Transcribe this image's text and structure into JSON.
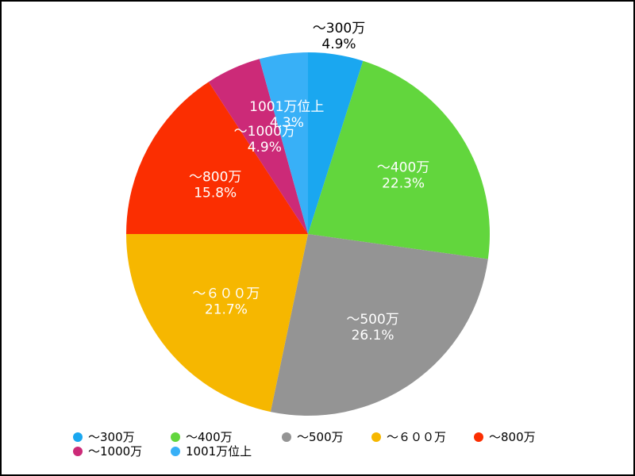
{
  "chart_data": {
    "type": "pie",
    "legend_position": "bottom",
    "slices": [
      {
        "label": "～300万",
        "value": 4.9,
        "value_label": "4.9%",
        "color": "#1aa7f0"
      },
      {
        "label": "～400万",
        "value": 22.3,
        "value_label": "22.3%",
        "color": "#62d63d"
      },
      {
        "label": "～500万",
        "value": 26.1,
        "value_label": "26.1%",
        "color": "#949494"
      },
      {
        "label": "～６００万",
        "value": 21.7,
        "value_label": "21.7%",
        "color": "#f6b700"
      },
      {
        "label": "～800万",
        "value": 15.8,
        "value_label": "15.8%",
        "color": "#fb2e01"
      },
      {
        "label": "～1000万",
        "value": 4.9,
        "value_label": "4.9%",
        "color": "#cc2a78"
      },
      {
        "label": "1001万位上",
        "value": 4.3,
        "value_label": "4.3%",
        "color": "#38b0f7"
      }
    ]
  }
}
